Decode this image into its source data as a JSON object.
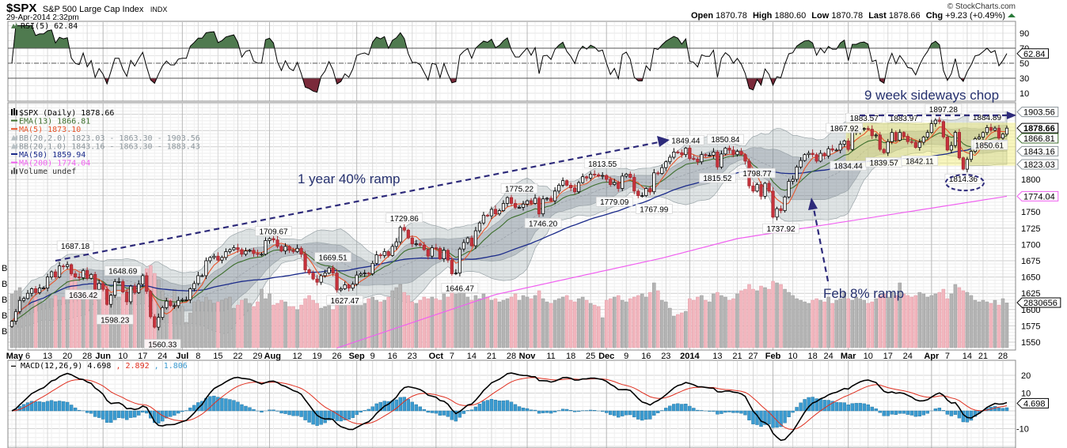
{
  "header": {
    "symbol": "$SPX",
    "name": "S&P 500 Large Cap Index",
    "exchange": "INDX",
    "datetime": "29-Apr-2014 2:32pm",
    "copyright": "© StockCharts.com",
    "open_label": "Open",
    "open": "1870.78",
    "high_label": "High",
    "high": "1880.60",
    "low_label": "Low",
    "low": "1870.78",
    "last_label": "Last",
    "last": "1878.66",
    "chg_label": "Chg",
    "chg": "+9.23 (+0.49%)",
    "chg_icon": "up-triangle-icon"
  },
  "rsi_panel": {
    "legend": "RSI(5) 62.84",
    "ticks": [
      "90",
      "70",
      "50",
      "30",
      "10"
    ],
    "tag": "62.84",
    "overbought_color": "#4f7a4f",
    "oversold_color": "#7a2a3a"
  },
  "price_panel": {
    "legend": [
      {
        "text": "$SPX (Daily) 1878.66",
        "color": "#000000",
        "icon": "candlestick-icon"
      },
      {
        "text": "EMA(13) 1866.81",
        "color": "#3c6e2c",
        "icon": "line-icon"
      },
      {
        "text": "MA(5) 1873.10",
        "color": "#e8542a",
        "icon": "line-icon"
      },
      {
        "text": "BB(20,2.0) 1823.03 - 1863.30 - 1903.56",
        "color": "#8a949a",
        "icon": "band-icon"
      },
      {
        "text": "BB(20,1.0) 1843.16 - 1863.30 - 1883.43",
        "color": "#8a949a",
        "icon": "band-icon"
      },
      {
        "text": "MA(50) 1859.94",
        "color": "#1a2a8a",
        "icon": "line-icon"
      },
      {
        "text": "MA(200) 1774.04",
        "color": "#f060f0",
        "icon": "line-icon"
      },
      {
        "text": "Volume undef",
        "color": "#333333",
        "icon": "volume-bars-icon"
      }
    ],
    "y_ticks": [
      "1800",
      "1750",
      "1725",
      "1700",
      "1675",
      "1650",
      "1625",
      "1600",
      "1575",
      "1550"
    ],
    "left_volume_ticks": [
      "B",
      "B",
      "B",
      "B",
      "B"
    ],
    "tags": [
      {
        "text": "1903.56",
        "value": 1903.56,
        "color": "#8a949a",
        "bold": false
      },
      {
        "text": "1866.81",
        "value": 1866.81,
        "color": "#3c6e2c",
        "bold": false
      },
      {
        "text": "1843.16",
        "value": 1843.16,
        "color": "#8a949a",
        "bold": false
      },
      {
        "text": "1823.03",
        "value": 1823.03,
        "color": "#8a949a",
        "bold": false
      },
      {
        "text": "1774.04",
        "value": 1774.04,
        "color": "#f060f0",
        "bold": false
      },
      {
        "text": "1878.66",
        "value": 1878.66,
        "color": "#000000",
        "bold": true
      }
    ],
    "volume_tag": "2830656",
    "annotations": {
      "ramp_year": "1 year 40% ramp",
      "ramp_feb": "Feb 8% ramp",
      "chop": "9 week sideways chop"
    }
  },
  "macd_panel": {
    "legend_name": "MACD(12,26,9) 4.698",
    "legend_signal": ", 2.892",
    "legend_hist": ", 1.806",
    "ticks": [
      "20",
      "10",
      "-10"
    ],
    "tag": "4.698",
    "macd_color": "#000000",
    "signal_color": "#e03020",
    "hist_color": "#3a9ad0"
  },
  "chart_data": {
    "type": "candlestick",
    "last_date": "2014-04-29",
    "price_range": [
      1541,
      1918
    ],
    "grid": true,
    "x_ticks": [
      {
        "label": "May",
        "date": "2013-05-01",
        "major": true
      },
      {
        "label": "6",
        "date": "2013-05-06"
      },
      {
        "label": "13",
        "date": "2013-05-13"
      },
      {
        "label": "20",
        "date": "2013-05-20"
      },
      {
        "label": "28",
        "date": "2013-05-28"
      },
      {
        "label": "Jun",
        "date": "2013-06-03",
        "major": true
      },
      {
        "label": "10",
        "date": "2013-06-10"
      },
      {
        "label": "17",
        "date": "2013-06-17"
      },
      {
        "label": "24",
        "date": "2013-06-24"
      },
      {
        "label": "Jul",
        "date": "2013-07-01",
        "major": true
      },
      {
        "label": "8",
        "date": "2013-07-08"
      },
      {
        "label": "15",
        "date": "2013-07-15"
      },
      {
        "label": "22",
        "date": "2013-07-22"
      },
      {
        "label": "29",
        "date": "2013-07-29"
      },
      {
        "label": "Aug",
        "date": "2013-08-01",
        "major": true
      },
      {
        "label": "12",
        "date": "2013-08-12"
      },
      {
        "label": "19",
        "date": "2013-08-19"
      },
      {
        "label": "26",
        "date": "2013-08-26"
      },
      {
        "label": "Sep",
        "date": "2013-09-03",
        "major": true
      },
      {
        "label": "9",
        "date": "2013-09-09"
      },
      {
        "label": "16",
        "date": "2013-09-16"
      },
      {
        "label": "23",
        "date": "2013-09-23"
      },
      {
        "label": "Oct",
        "date": "2013-10-01",
        "major": true
      },
      {
        "label": "7",
        "date": "2013-10-07"
      },
      {
        "label": "14",
        "date": "2013-10-14"
      },
      {
        "label": "21",
        "date": "2013-10-21"
      },
      {
        "label": "28",
        "date": "2013-10-28"
      },
      {
        "label": "Nov",
        "date": "2013-11-01",
        "major": true
      },
      {
        "label": "11",
        "date": "2013-11-11"
      },
      {
        "label": "18",
        "date": "2013-11-18"
      },
      {
        "label": "25",
        "date": "2013-11-25"
      },
      {
        "label": "Dec",
        "date": "2013-12-02",
        "major": true
      },
      {
        "label": "9",
        "date": "2013-12-09"
      },
      {
        "label": "16",
        "date": "2013-12-16"
      },
      {
        "label": "23",
        "date": "2013-12-23"
      },
      {
        "label": "2014",
        "date": "2014-01-02",
        "major": true
      },
      {
        "label": "13",
        "date": "2014-01-13"
      },
      {
        "label": "21",
        "date": "2014-01-21"
      },
      {
        "label": "27",
        "date": "2014-01-27"
      },
      {
        "label": "Feb",
        "date": "2014-02-03",
        "major": true
      },
      {
        "label": "10",
        "date": "2014-02-10"
      },
      {
        "label": "18",
        "date": "2014-02-18"
      },
      {
        "label": "24",
        "date": "2014-02-24"
      },
      {
        "label": "Mar",
        "date": "2014-03-03",
        "major": true
      },
      {
        "label": "10",
        "date": "2014-03-10"
      },
      {
        "label": "17",
        "date": "2014-03-17"
      },
      {
        "label": "24",
        "date": "2014-03-24"
      },
      {
        "label": "Apr",
        "date": "2014-04-01",
        "major": true
      },
      {
        "label": "7",
        "date": "2014-04-07"
      },
      {
        "label": "14",
        "date": "2014-04-14"
      },
      {
        "label": "21",
        "date": "2014-04-21"
      },
      {
        "label": "28",
        "date": "2014-04-28"
      }
    ],
    "close": [
      1582,
      1597,
      1614,
      1617,
      1625,
      1632,
      1626,
      1633,
      1633,
      1650,
      1658,
      1650,
      1667,
      1666,
      1669,
      1655,
      1650,
      1649,
      1660,
      1648,
      1654,
      1631,
      1640,
      1631,
      1608,
      1622,
      1643,
      1643,
      1627,
      1612,
      1636,
      1626,
      1639,
      1652,
      1628,
      1589,
      1573,
      1588,
      1603,
      1613,
      1606,
      1606,
      1614,
      1615,
      1615,
      1632,
      1640,
      1652,
      1652,
      1675,
      1680,
      1682,
      1676,
      1680,
      1689,
      1692,
      1695,
      1692,
      1685,
      1690,
      1691,
      1686,
      1685,
      1685,
      1706,
      1709,
      1707,
      1697,
      1690,
      1697,
      1691,
      1689,
      1694,
      1685,
      1661,
      1656,
      1647,
      1642,
      1652,
      1656,
      1664,
      1656,
      1630,
      1632,
      1638,
      1633,
      1639,
      1653,
      1655,
      1656,
      1655,
      1671,
      1684,
      1683,
      1689,
      1683,
      1697,
      1704,
      1726,
      1722,
      1710,
      1701,
      1701,
      1699,
      1692,
      1682,
      1695,
      1694,
      1678,
      1691,
      1676,
      1655,
      1656,
      1693,
      1703,
      1710,
      1698,
      1721,
      1733,
      1745,
      1744,
      1754,
      1747,
      1752,
      1763,
      1772,
      1763,
      1757,
      1757,
      1762,
      1767,
      1763,
      1771,
      1747,
      1770,
      1771,
      1767,
      1782,
      1791,
      1798,
      1791,
      1787,
      1781,
      1795,
      1804,
      1802,
      1808,
      1807,
      1805,
      1806,
      1800,
      1792,
      1795,
      1786,
      1805,
      1808,
      1803,
      1782,
      1775,
      1775,
      1786,
      1781,
      1810,
      1809,
      1818,
      1827,
      1834,
      1842,
      1841,
      1838,
      1848,
      1832,
      1831,
      1827,
      1838,
      1837,
      1837,
      1842,
      1819,
      1839,
      1848,
      1845,
      1838,
      1843,
      1838,
      1828,
      1790,
      1782,
      1792,
      1774,
      1794,
      1782,
      1742,
      1755,
      1752,
      1773,
      1797,
      1800,
      1819,
      1829,
      1838,
      1840,
      1838,
      1828,
      1840,
      1836,
      1847,
      1845,
      1845,
      1854,
      1859,
      1846,
      1873,
      1873,
      1877,
      1878,
      1877,
      1867,
      1868,
      1846,
      1841,
      1858,
      1872,
      1860,
      1872,
      1866,
      1858,
      1857,
      1849,
      1857,
      1865,
      1872,
      1885.52,
      1890.9,
      1888.77,
      1865.09,
      1845.04,
      1851.96,
      1872.18,
      1833.08,
      1815.69,
      1830.61,
      1842.98,
      1862.31,
      1864.85,
      1871.89,
      1879.55,
      1875.39,
      1878.61,
      1863.4,
      1869.43,
      1878.66
    ],
    "volume": [
      3400000,
      3600000,
      3800000,
      3100000,
      2900000,
      3300000,
      3200000,
      3000000,
      2800000,
      3500000,
      3100000,
      3300000,
      3000000,
      3200000,
      4200000,
      5100000,
      4300000,
      3700000,
      3400000,
      3500000,
      3200000,
      4100000,
      3600000,
      3700000,
      4000000,
      3500000,
      3300000,
      3200000,
      3400000,
      3100000,
      3000000,
      3400000,
      3600000,
      3900000,
      5000000,
      5200000,
      4700000,
      4300000,
      3600000,
      3200000,
      3100000,
      3700000,
      2700000,
      2600000,
      1600000,
      2200000,
      2900000,
      3000000,
      2900000,
      3200000,
      3000000,
      2800000,
      2900000,
      3000000,
      3100000,
      3200000,
      2500000,
      2700000,
      3000000,
      3100000,
      2800000,
      2600000,
      2900000,
      3700000,
      3100000,
      3400000,
      2700000,
      2800000,
      3000000,
      2900000,
      2600000,
      2600000,
      2400000,
      2700000,
      3100000,
      3300000,
      3000000,
      2800000,
      2500000,
      2600000,
      2800000,
      2400000,
      3100000,
      2900000,
      2700000,
      2800000,
      3000000,
      3100000,
      2900000,
      2800000,
      3100000,
      3200000,
      3000000,
      2900000,
      3000000,
      3200000,
      3600000,
      3800000,
      4000000,
      3500000,
      3300000,
      2900000,
      2800000,
      3000000,
      3200000,
      3100000,
      3200000,
      3100000,
      3000000,
      3400000,
      3200000,
      3600000,
      3400000,
      3900000,
      3500000,
      3200000,
      3000000,
      3300000,
      3100000,
      3400000,
      3200000,
      3000000,
      3100000,
      2900000,
      3000000,
      3100000,
      3200000,
      3400000,
      3000000,
      3300000,
      3200000,
      3100000,
      3300000,
      3600000,
      3100000,
      2900000,
      2800000,
      3000000,
      3100000,
      3200000,
      3300000,
      3000000,
      2900000,
      3100000,
      3200000,
      3000000,
      2800000,
      2700000,
      2600000,
      1900000,
      3000000,
      3100000,
      3200000,
      3300000,
      3000000,
      2900000,
      3100000,
      3200000,
      3300000,
      3400000,
      3200000,
      3500000,
      4100000,
      3600000,
      3000000,
      2900000,
      2500000,
      2000000,
      2100000,
      2200000,
      2300000,
      3100000,
      3000000,
      3200000,
      3300000,
      3000000,
      2900000,
      3400000,
      3500000,
      3300000,
      3200000,
      3000000,
      3100000,
      3400000,
      3600000,
      3700000,
      4000000,
      3700000,
      3600000,
      3900000,
      3800000,
      3700000,
      4200000,
      4100000,
      4000000,
      3700000,
      3500000,
      3300000,
      3100000,
      3000000,
      2900000,
      2800000,
      3000000,
      3100000,
      3000000,
      2900000,
      3200000,
      2800000,
      3000000,
      3100000,
      3500000,
      3100000,
      3000000,
      3200000,
      3100000,
      3000000,
      2800000,
      2900000,
      3100000,
      3300000,
      3400000,
      3200000,
      3500000,
      3300000,
      4100000,
      3400000,
      3300000,
      3200000,
      3300000,
      3500000,
      3400000,
      3200000,
      3300000,
      3400000,
      3500000,
      3700000,
      3100000,
      3400000,
      4000000,
      3800000,
      3600000,
      3500000,
      3300000,
      3000000,
      2900000,
      3000000,
      2900000,
      2800000,
      3000000,
      2700000,
      3100000,
      2830656
    ],
    "ma200": [
      {
        "date": "2013-08-26",
        "value": 1541
      },
      {
        "date": "2013-10-22",
        "value": 1623
      },
      {
        "date": "2013-12-20",
        "value": 1679
      },
      {
        "date": "2014-01-21",
        "value": 1709
      },
      {
        "date": "2014-04-29",
        "value": 1774.04
      }
    ],
    "price_labels": [
      {
        "text": "1687.18",
        "date": "2013-05-22",
        "value": 1687.18,
        "pos": "above"
      },
      {
        "text": "1636.42",
        "date": "2013-05-24",
        "value": 1636.42,
        "pos": "below"
      },
      {
        "text": "1648.69",
        "date": "2013-06-10",
        "value": 1648.69,
        "pos": "above"
      },
      {
        "text": "1598.23",
        "date": "2013-06-06",
        "value": 1598.23,
        "pos": "below"
      },
      {
        "text": "1560.33",
        "date": "2013-06-24",
        "value": 1560.33,
        "pos": "below"
      },
      {
        "text": "1709.67",
        "date": "2013-08-02",
        "value": 1709.67,
        "pos": "above"
      },
      {
        "text": "1669.51",
        "date": "2013-08-23",
        "value": 1669.51,
        "pos": "above"
      },
      {
        "text": "1627.47",
        "date": "2013-08-28",
        "value": 1627.47,
        "pos": "below"
      },
      {
        "text": "1729.86",
        "date": "2013-09-19",
        "value": 1729.86,
        "pos": "above"
      },
      {
        "text": "1646.47",
        "date": "2013-10-09",
        "value": 1646.47,
        "pos": "below"
      },
      {
        "text": "1775.22",
        "date": "2013-10-30",
        "value": 1775.22,
        "pos": "above"
      },
      {
        "text": "1746.20",
        "date": "2013-11-07",
        "value": 1746.2,
        "pos": "below"
      },
      {
        "text": "1813.55",
        "date": "2013-11-29",
        "value": 1813.55,
        "pos": "above"
      },
      {
        "text": "1779.09",
        "date": "2013-12-04",
        "value": 1779.09,
        "pos": "below"
      },
      {
        "text": "1767.99",
        "date": "2013-12-18",
        "value": 1767.99,
        "pos": "below"
      },
      {
        "text": "1849.44",
        "date": "2013-12-31",
        "value": 1849.44,
        "pos": "above"
      },
      {
        "text": "1850.84",
        "date": "2014-01-15",
        "value": 1850.84,
        "pos": "above"
      },
      {
        "text": "1815.52",
        "date": "2014-01-13",
        "value": 1815.52,
        "pos": "below"
      },
      {
        "text": "1798.77",
        "date": "2014-01-28",
        "value": 1798.77,
        "pos": "above"
      },
      {
        "text": "1737.92",
        "date": "2014-02-05",
        "value": 1737.92,
        "pos": "below"
      },
      {
        "text": "1867.92",
        "date": "2014-02-28",
        "value": 1867.92,
        "pos": "above"
      },
      {
        "text": "1834.44",
        "date": "2014-03-03",
        "value": 1834.44,
        "pos": "below"
      },
      {
        "text": "1883.57",
        "date": "2014-03-07",
        "value": 1883.57,
        "pos": "above"
      },
      {
        "text": "1839.57",
        "date": "2014-03-14",
        "value": 1839.57,
        "pos": "below"
      },
      {
        "text": "1883.97",
        "date": "2014-03-21",
        "value": 1883.97,
        "pos": "above"
      },
      {
        "text": "1842.11",
        "date": "2014-03-27",
        "value": 1842.11,
        "pos": "below"
      },
      {
        "text": "1897.28",
        "date": "2014-04-04",
        "value": 1897.28,
        "pos": "above"
      },
      {
        "text": "1814.36",
        "date": "2014-04-11",
        "value": 1814.36,
        "pos": "below"
      },
      {
        "text": "1884.89",
        "date": "2014-04-22",
        "value": 1884.89,
        "pos": "above"
      },
      {
        "text": "1850.61",
        "date": "2014-04-28",
        "value": 1850.61,
        "pos": "right"
      }
    ]
  }
}
